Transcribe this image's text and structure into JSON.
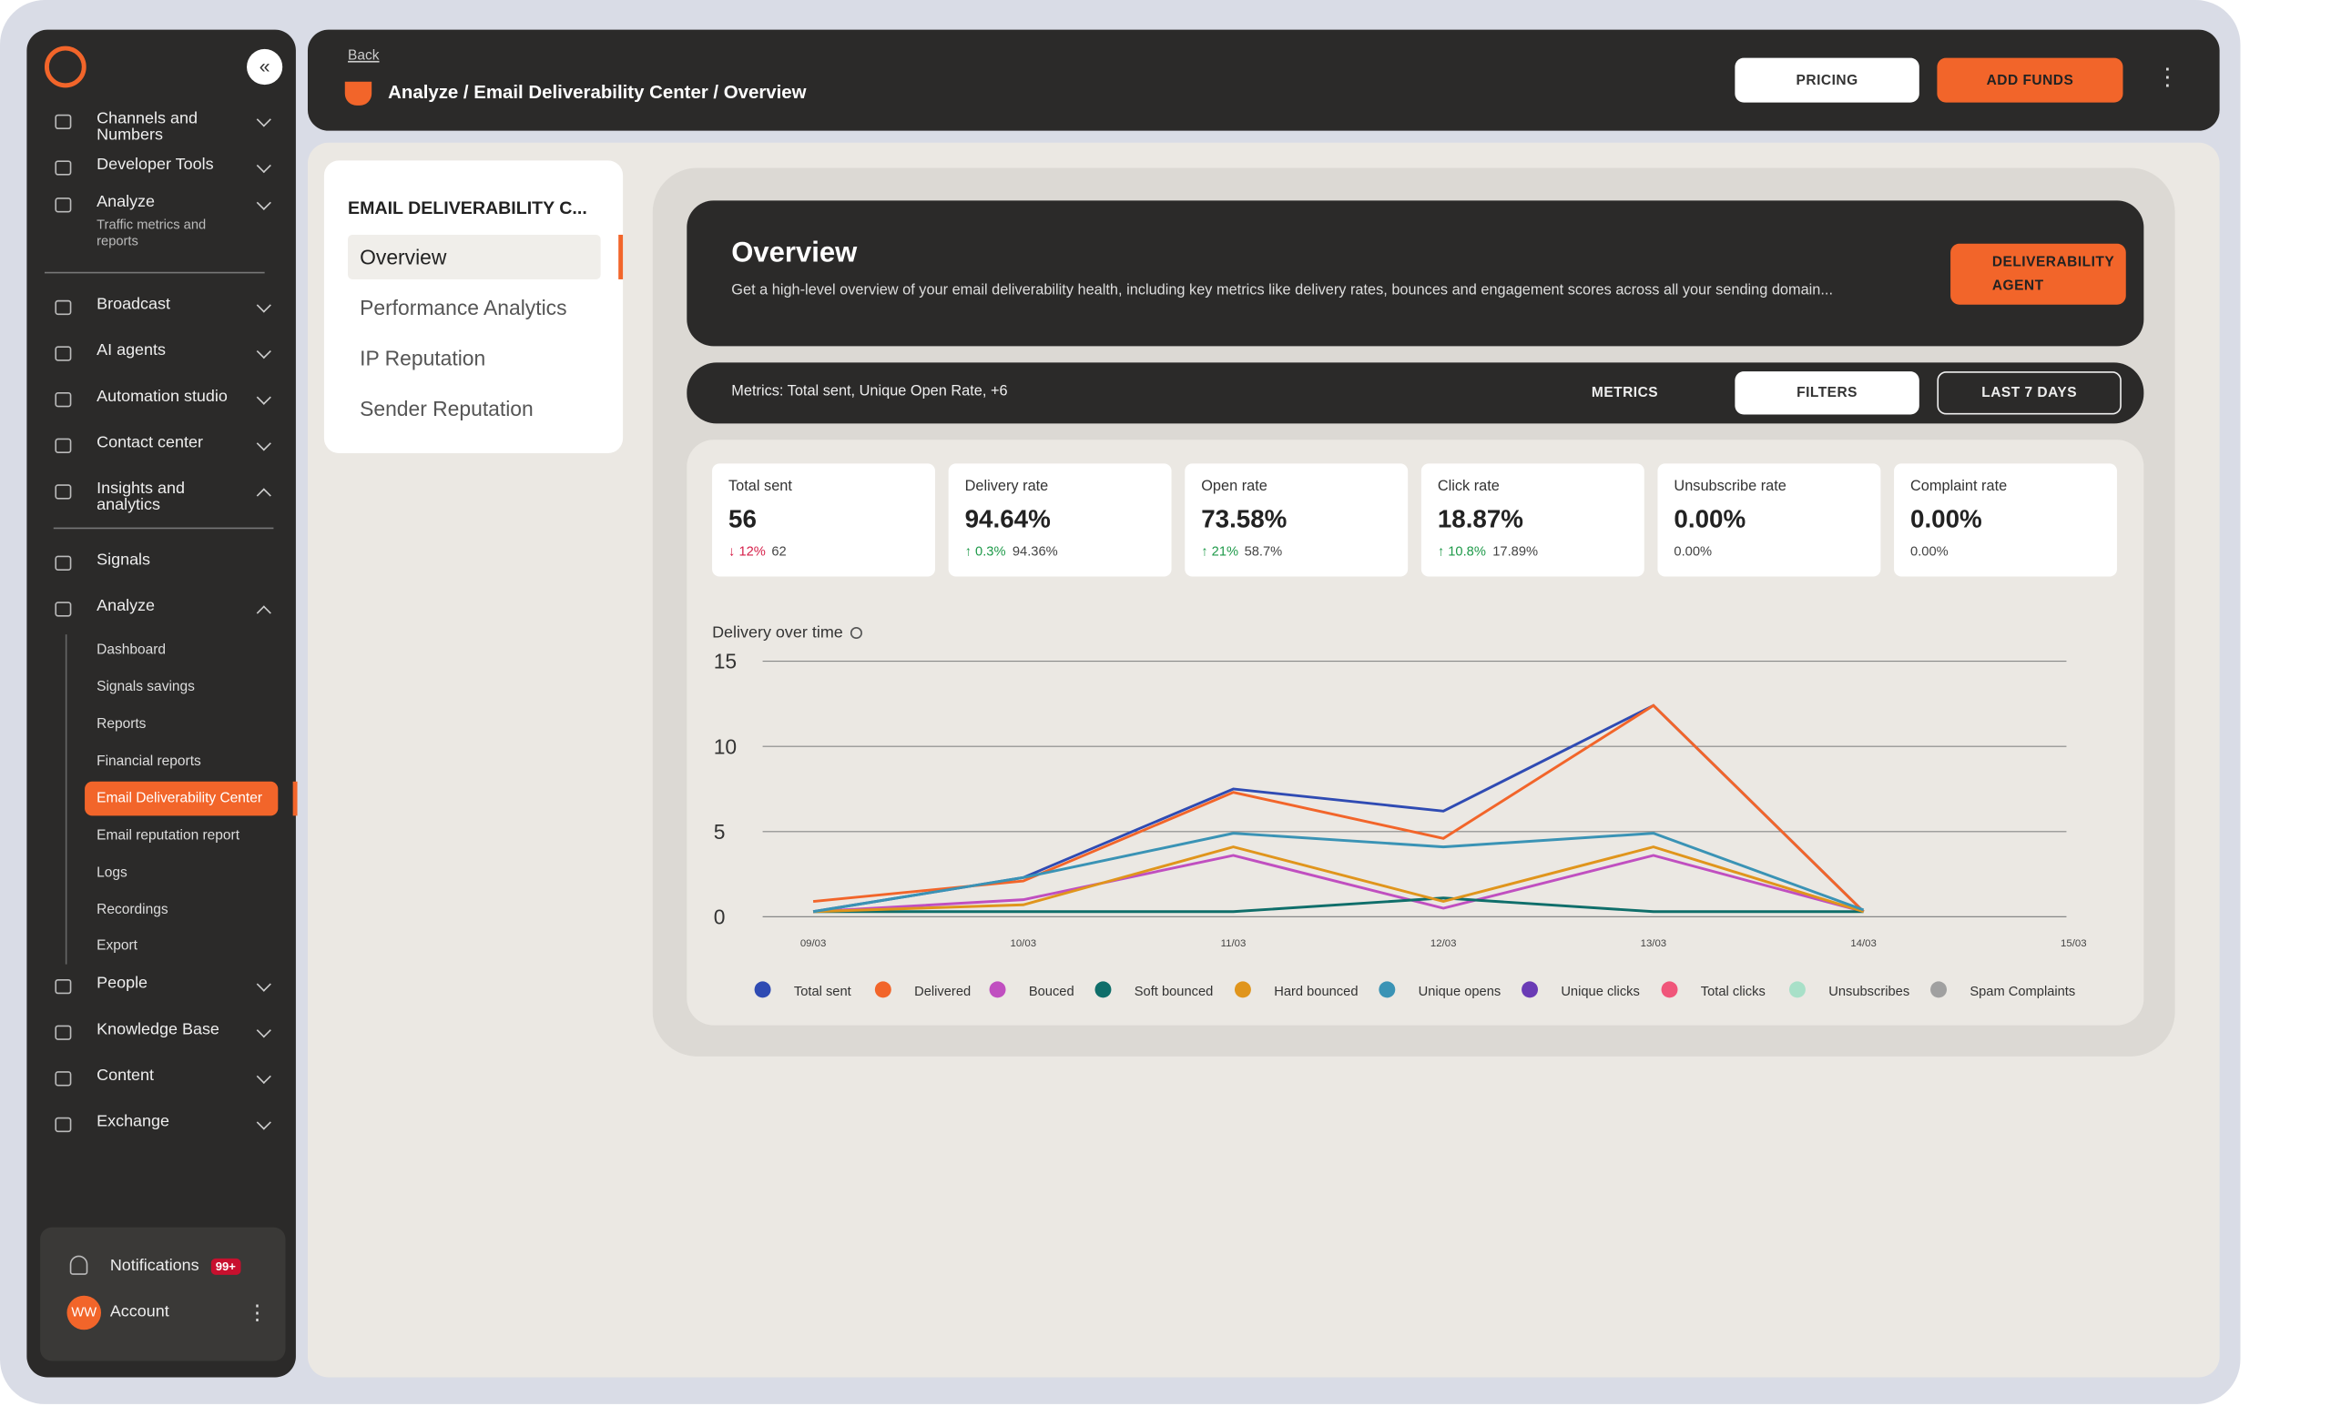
{
  "sidebar": {
    "nav_top": [
      {
        "label": "Channels and Numbers"
      },
      {
        "label": "Developer Tools"
      },
      {
        "label": "Analyze",
        "subtitle": "Traffic metrics and reports"
      }
    ],
    "nav_main": [
      "Broadcast",
      "AI agents",
      "Automation studio",
      "Contact center",
      "Insights and analytics"
    ],
    "nav_insights": [
      "Signals",
      "Analyze"
    ],
    "analyze_sub": [
      "Dashboard",
      "Signals savings",
      "Reports",
      "Financial reports",
      "Email Deliverability Center",
      "Email reputation report",
      "Logs",
      "Recordings",
      "Export"
    ],
    "nav_bottom": [
      "People",
      "Knowledge Base",
      "Content",
      "Exchange"
    ],
    "notifications": "Notifications",
    "notifications_badge": "99+",
    "account": "Account",
    "avatar": "WW"
  },
  "header": {
    "back": "Back",
    "breadcrumb": "Analyze / Email Deliverability Center / Overview",
    "pricing": "PRICING",
    "add_funds": "ADD FUNDS"
  },
  "subnav": {
    "title": "EMAIL DELIVERABILITY C...",
    "items": [
      "Overview",
      "Performance Analytics",
      "IP Reputation",
      "Sender Reputation"
    ]
  },
  "overview": {
    "title": "Overview",
    "description": "Get a high-level overview of your email deliverability health, including key metrics like delivery rates, bounces and engagement scores across all your sending domain...",
    "agent_button": "DELIVERABILITY AGENT"
  },
  "toolbar": {
    "metrics_summary": "Metrics: Total sent, Unique Open Rate, +6",
    "metrics": "METRICS",
    "filters": "FILTERS",
    "range": "LAST 7 DAYS"
  },
  "kpis": [
    {
      "label": "Total sent",
      "value": "56",
      "change": "↓ 12%",
      "previous": "62",
      "trend": "down"
    },
    {
      "label": "Delivery rate",
      "value": "94.64%",
      "change": "↑ 0.3%",
      "previous": "94.36%",
      "trend": "up"
    },
    {
      "label": "Open rate",
      "value": "73.58%",
      "change": "↑ 21%",
      "previous": "58.7%",
      "trend": "up"
    },
    {
      "label": "Click rate",
      "value": "18.87%",
      "change": "↑ 10.8%",
      "previous": "17.89%",
      "trend": "up"
    },
    {
      "label": "Unsubscribe rate",
      "value": "0.00%",
      "previous": "0.00%"
    },
    {
      "label": "Complaint rate",
      "value": "0.00%",
      "previous": "0.00%"
    }
  ],
  "chart_data": {
    "type": "line",
    "title": "Delivery over time",
    "categories": [
      "09/03",
      "10/03",
      "11/03",
      "12/03",
      "13/03",
      "14/03",
      "15/03"
    ],
    "ylim": [
      0,
      15
    ],
    "yticks": [
      0,
      5,
      10,
      15
    ],
    "grid": true,
    "series": [
      {
        "name": "Total sent",
        "color": "#2f4bb3",
        "values": [
          0.3,
          2.3,
          7.5,
          6.2,
          12.4,
          0.3,
          null
        ]
      },
      {
        "name": "Delivered",
        "color": "#f2652a",
        "values": [
          0.9,
          2.1,
          7.3,
          4.6,
          12.4,
          0.3,
          null
        ]
      },
      {
        "name": "Bouced",
        "color": "#c04fc0",
        "values": [
          0.3,
          1.0,
          3.6,
          0.5,
          3.6,
          0.3,
          null
        ]
      },
      {
        "name": "Soft bounced",
        "color": "#0f6e6a",
        "values": [
          0.3,
          0.3,
          0.3,
          1.1,
          0.3,
          0.3,
          null
        ]
      },
      {
        "name": "Hard bounced",
        "color": "#e0951c",
        "values": [
          0.3,
          0.7,
          4.1,
          0.9,
          4.1,
          0.3,
          null
        ]
      },
      {
        "name": "Unique opens",
        "color": "#3a93b5",
        "values": [
          0.3,
          2.3,
          4.9,
          4.1,
          4.9,
          0.4,
          null
        ]
      },
      {
        "name": "Unique clicks",
        "color": "#6a3bb5",
        "values": [
          null,
          null,
          null,
          null,
          null,
          null,
          null
        ]
      },
      {
        "name": "Total clicks",
        "color": "#f0567a",
        "values": [
          null,
          null,
          null,
          null,
          null,
          null,
          null
        ]
      },
      {
        "name": "Unsubscribes",
        "color": "#a8e0c8",
        "values": [
          null,
          null,
          null,
          null,
          null,
          null,
          null
        ]
      },
      {
        "name": "Spam Complaints",
        "color": "#a0a0a0",
        "values": [
          null,
          null,
          null,
          null,
          null,
          null,
          null
        ]
      }
    ]
  }
}
